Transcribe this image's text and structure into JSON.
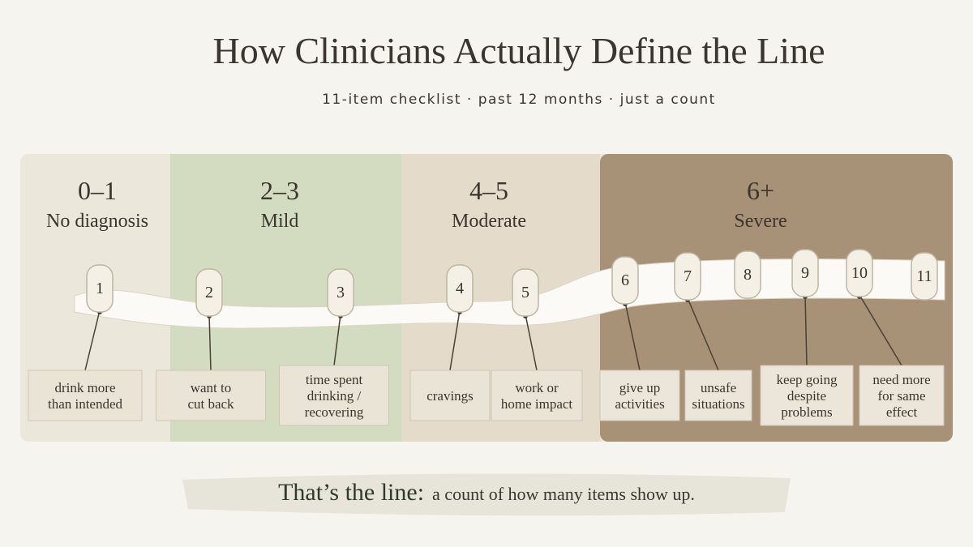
{
  "header": {
    "title": "How Clinicians Actually Define the Line",
    "subtitle": "11-item checklist · past 12 months · just a count"
  },
  "bands": [
    {
      "range": "0–1",
      "label": "No diagnosis"
    },
    {
      "range": "2–3",
      "label": "Mild"
    },
    {
      "range": "4–5",
      "label": "Moderate"
    },
    {
      "range": "6+",
      "label": "Severe"
    }
  ],
  "items": [
    {
      "number": "1",
      "card": [
        "drink more",
        "than intended"
      ]
    },
    {
      "number": "2",
      "card": [
        "want to",
        "cut back"
      ]
    },
    {
      "number": "3",
      "card": [
        "time spent",
        "drinking /",
        "recovering"
      ]
    },
    {
      "number": "4",
      "card": [
        "cravings"
      ]
    },
    {
      "number": "5",
      "card": [
        "work or",
        "home impact"
      ]
    },
    {
      "number": "6",
      "card": [
        "give up",
        "activities"
      ]
    },
    {
      "number": "7",
      "card": [
        "unsafe",
        "situations"
      ]
    },
    {
      "number": "8"
    },
    {
      "number": "9",
      "card": [
        "keep going",
        "despite",
        "problems"
      ]
    },
    {
      "number": "10",
      "card": [
        "need more",
        "for same",
        "effect"
      ]
    },
    {
      "number": "11"
    }
  ],
  "footer": {
    "emphasis": "That’s the line:",
    "text": "a count of how many items show up."
  }
}
